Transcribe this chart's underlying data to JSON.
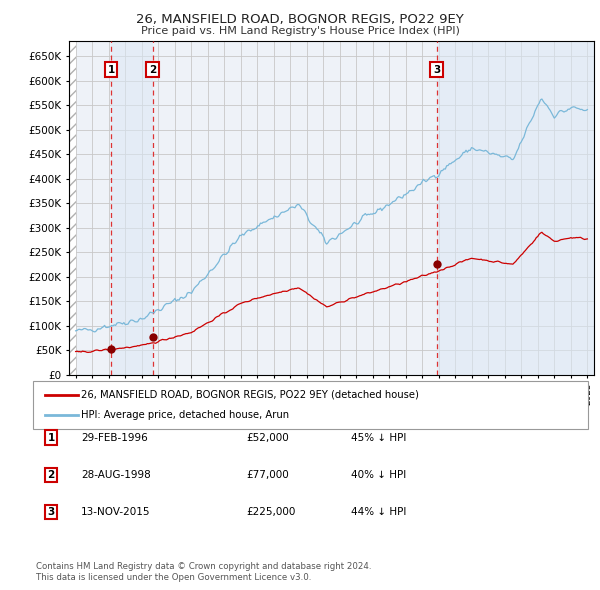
{
  "title": "26, MANSFIELD ROAD, BOGNOR REGIS, PO22 9EY",
  "subtitle": "Price paid vs. HM Land Registry's House Price Index (HPI)",
  "legend_line1": "26, MANSFIELD ROAD, BOGNOR REGIS, PO22 9EY (detached house)",
  "legend_line2": "HPI: Average price, detached house, Arun",
  "footer1": "Contains HM Land Registry data © Crown copyright and database right 2024.",
  "footer2": "This data is licensed under the Open Government Licence v3.0.",
  "sale_labels": [
    {
      "label": "1",
      "date": "29-FEB-1996",
      "price": "£52,000",
      "pct": "45% ↓ HPI"
    },
    {
      "label": "2",
      "date": "28-AUG-1998",
      "price": "£77,000",
      "pct": "40% ↓ HPI"
    },
    {
      "label": "3",
      "date": "13-NOV-2015",
      "price": "£225,000",
      "pct": "44% ↓ HPI"
    }
  ],
  "sale_dates": [
    1996.16,
    1998.66,
    2015.87
  ],
  "sale_prices": [
    52000,
    77000,
    225000
  ],
  "vline_dates": [
    1996.16,
    1998.66,
    2015.87
  ],
  "ylim": [
    0,
    680000
  ],
  "yticks": [
    0,
    50000,
    100000,
    150000,
    200000,
    250000,
    300000,
    350000,
    400000,
    450000,
    500000,
    550000,
    600000,
    650000
  ],
  "xlim_start": 1993.6,
  "xlim_end": 2025.4,
  "hpi_color": "#7ab8d9",
  "sales_color": "#cc0000",
  "sales_dot_color": "#880000",
  "vline_color": "#dd3333",
  "shade_color": "#dce8f5",
  "grid_color": "#c8c8c8",
  "bg_color": "#ffffff",
  "plot_bg_color": "#eef2f8"
}
